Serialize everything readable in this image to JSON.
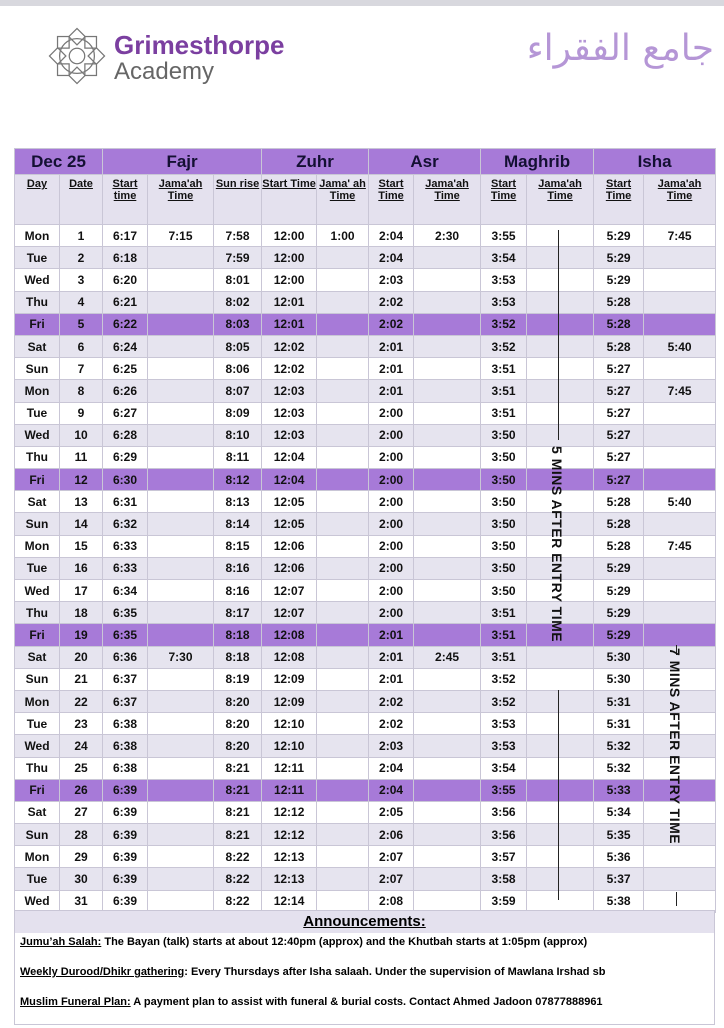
{
  "header": {
    "brand_line1": "Grimesthorpe",
    "brand_line2": "Academy",
    "arabic_title": "جامع الفقراء"
  },
  "table": {
    "month": "Dec 25",
    "prayers": [
      "Fajr",
      "Zuhr",
      "Asr",
      "Maghrib",
      "Isha"
    ],
    "columns": [
      "Day",
      "Date",
      "Start time",
      "Jama'ah Time",
      "Sun rise",
      "Start Time",
      "Jama' ah Time",
      "Start Time",
      "Jama'ah Time",
      "Start Time",
      "Jama'ah Time",
      "Start Time",
      "Jama'ah Time"
    ],
    "rows": [
      [
        "Mon",
        "1",
        "6:17",
        "7:15",
        "7:58",
        "12:00",
        "1:00",
        "2:04",
        "2:30",
        "3:55",
        "",
        "5:29",
        "7:45"
      ],
      [
        "Tue",
        "2",
        "6:18",
        "",
        "7:59",
        "12:00",
        "",
        "2:04",
        "",
        "3:54",
        "",
        "5:29",
        ""
      ],
      [
        "Wed",
        "3",
        "6:20",
        "",
        "8:01",
        "12:00",
        "",
        "2:03",
        "",
        "3:53",
        "",
        "5:29",
        ""
      ],
      [
        "Thu",
        "4",
        "6:21",
        "",
        "8:02",
        "12:01",
        "",
        "2:02",
        "",
        "3:53",
        "",
        "5:28",
        ""
      ],
      [
        "Fri",
        "5",
        "6:22",
        "",
        "8:03",
        "12:01",
        "",
        "2:02",
        "",
        "3:52",
        "",
        "5:28",
        ""
      ],
      [
        "Sat",
        "6",
        "6:24",
        "",
        "8:05",
        "12:02",
        "",
        "2:01",
        "",
        "3:52",
        "",
        "5:28",
        "5:40"
      ],
      [
        "Sun",
        "7",
        "6:25",
        "",
        "8:06",
        "12:02",
        "",
        "2:01",
        "",
        "3:51",
        "",
        "5:27",
        ""
      ],
      [
        "Mon",
        "8",
        "6:26",
        "",
        "8:07",
        "12:03",
        "",
        "2:01",
        "",
        "3:51",
        "",
        "5:27",
        "7:45"
      ],
      [
        "Tue",
        "9",
        "6:27",
        "",
        "8:09",
        "12:03",
        "",
        "2:00",
        "",
        "3:51",
        "",
        "5:27",
        ""
      ],
      [
        "Wed",
        "10",
        "6:28",
        "",
        "8:10",
        "12:03",
        "",
        "2:00",
        "",
        "3:50",
        "",
        "5:27",
        ""
      ],
      [
        "Thu",
        "11",
        "6:29",
        "",
        "8:11",
        "12:04",
        "",
        "2:00",
        "",
        "3:50",
        "",
        "5:27",
        ""
      ],
      [
        "Fri",
        "12",
        "6:30",
        "",
        "8:12",
        "12:04",
        "",
        "2:00",
        "",
        "3:50",
        "",
        "5:27",
        ""
      ],
      [
        "Sat",
        "13",
        "6:31",
        "",
        "8:13",
        "12:05",
        "",
        "2:00",
        "",
        "3:50",
        "",
        "5:28",
        "5:40"
      ],
      [
        "Sun",
        "14",
        "6:32",
        "",
        "8:14",
        "12:05",
        "",
        "2:00",
        "",
        "3:50",
        "",
        "5:28",
        ""
      ],
      [
        "Mon",
        "15",
        "6:33",
        "",
        "8:15",
        "12:06",
        "",
        "2:00",
        "",
        "3:50",
        "",
        "5:28",
        "7:45"
      ],
      [
        "Tue",
        "16",
        "6:33",
        "",
        "8:16",
        "12:06",
        "",
        "2:00",
        "",
        "3:50",
        "",
        "5:29",
        ""
      ],
      [
        "Wed",
        "17",
        "6:34",
        "",
        "8:16",
        "12:07",
        "",
        "2:00",
        "",
        "3:50",
        "",
        "5:29",
        ""
      ],
      [
        "Thu",
        "18",
        "6:35",
        "",
        "8:17",
        "12:07",
        "",
        "2:00",
        "",
        "3:51",
        "",
        "5:29",
        ""
      ],
      [
        "Fri",
        "19",
        "6:35",
        "",
        "8:18",
        "12:08",
        "",
        "2:01",
        "",
        "3:51",
        "",
        "5:29",
        ""
      ],
      [
        "Sat",
        "20",
        "6:36",
        "7:30",
        "8:18",
        "12:08",
        "",
        "2:01",
        "2:45",
        "3:51",
        "",
        "5:30",
        ""
      ],
      [
        "Sun",
        "21",
        "6:37",
        "",
        "8:19",
        "12:09",
        "",
        "2:01",
        "",
        "3:52",
        "",
        "5:30",
        ""
      ],
      [
        "Mon",
        "22",
        "6:37",
        "",
        "8:20",
        "12:09",
        "",
        "2:02",
        "",
        "3:52",
        "",
        "5:31",
        ""
      ],
      [
        "Tue",
        "23",
        "6:38",
        "",
        "8:20",
        "12:10",
        "",
        "2:02",
        "",
        "3:53",
        "",
        "5:31",
        ""
      ],
      [
        "Wed",
        "24",
        "6:38",
        "",
        "8:20",
        "12:10",
        "",
        "2:03",
        "",
        "3:53",
        "",
        "5:32",
        ""
      ],
      [
        "Thu",
        "25",
        "6:38",
        "",
        "8:21",
        "12:11",
        "",
        "2:04",
        "",
        "3:54",
        "",
        "5:32",
        ""
      ],
      [
        "Fri",
        "26",
        "6:39",
        "",
        "8:21",
        "12:11",
        "",
        "2:04",
        "",
        "3:55",
        "",
        "5:33",
        ""
      ],
      [
        "Sat",
        "27",
        "6:39",
        "",
        "8:21",
        "12:12",
        "",
        "2:05",
        "",
        "3:56",
        "",
        "5:34",
        ""
      ],
      [
        "Sun",
        "28",
        "6:39",
        "",
        "8:21",
        "12:12",
        "",
        "2:06",
        "",
        "3:56",
        "",
        "5:35",
        ""
      ],
      [
        "Mon",
        "29",
        "6:39",
        "",
        "8:22",
        "12:13",
        "",
        "2:07",
        "",
        "3:57",
        "",
        "5:36",
        ""
      ],
      [
        "Tue",
        "30",
        "6:39",
        "",
        "8:22",
        "12:13",
        "",
        "2:07",
        "",
        "3:58",
        "",
        "5:37",
        ""
      ],
      [
        "Wed",
        "31",
        "6:39",
        "",
        "8:22",
        "12:14",
        "",
        "2:08",
        "",
        "3:59",
        "",
        "5:38",
        ""
      ]
    ],
    "maghrib_note": "5 MINS AFTER ENTRY TIME",
    "isha_note": "7 MINS AFTER ENTRY TIME"
  },
  "colors": {
    "header_purple": "#a77ad8",
    "friday_row": "#a77ad8",
    "alt_row": "#e6e4ef",
    "brand": "#7b3fa0"
  },
  "announcements": {
    "title": "Announcements:",
    "items": [
      {
        "key": "Jumu’ah Salah:",
        "text": " The Bayan (talk) starts at about 12:40pm (approx) and the Khutbah starts at 1:05pm (approx)"
      },
      {
        "key": "Weekly Durood/Dhikr gathering",
        "text": ": Every Thursdays after Isha salaah. Under the supervision of Mawlana Irshad sb"
      },
      {
        "key": "Muslim Funeral Plan:",
        "text": " A payment plan to assist with funeral & burial costs. Contact Ahmed Jadoon 07877888961"
      }
    ]
  }
}
